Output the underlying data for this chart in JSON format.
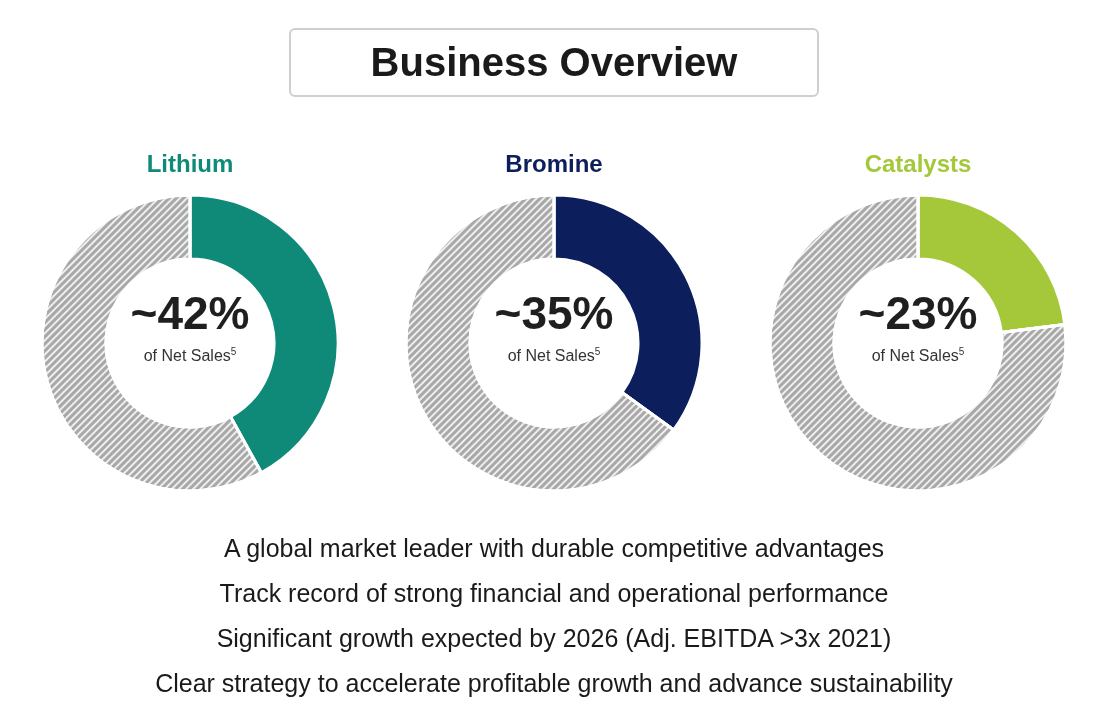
{
  "chart_data": [
    {
      "type": "other",
      "title": "Business Overview"
    },
    {
      "type": "donut",
      "title": "Lithium",
      "categories": [
        null,
        null
      ],
      "values": [
        42,
        58
      ],
      "colors": [
        "#0f8a78",
        "#a8a8a8"
      ],
      "value_labels": [
        "~42%",
        null
      ],
      "annotations": [
        "of Net Sales$^{5}$"
      ]
    },
    {
      "type": "donut",
      "title": "Bromine",
      "categories": [
        null,
        null
      ],
      "values": [
        35,
        65
      ],
      "colors": [
        "#0c1f5c",
        "#a8a8a8"
      ],
      "value_labels": [
        "~35%",
        null
      ],
      "annotations": [
        "of Net Sales$^{5}$"
      ]
    },
    {
      "type": "donut",
      "title": "Catalysts",
      "categories": [
        null,
        null
      ],
      "values": [
        23,
        77
      ],
      "colors": [
        "#a4c83a",
        "#a8a8a8"
      ],
      "value_labels": [
        "~23%",
        null
      ],
      "annotations": [
        "of Net Sales$^{5}$"
      ]
    },
    {
      "type": "other",
      "annotations": [
        "A global market leader with durable competitive advantages",
        "Track record of strong financial and operational performance",
        "Significant growth expected by 2026 (Adj. EBITDA >3x 2021)",
        "Clear strategy to accelerate profitable growth and advance sustainability"
      ]
    }
  ]
}
